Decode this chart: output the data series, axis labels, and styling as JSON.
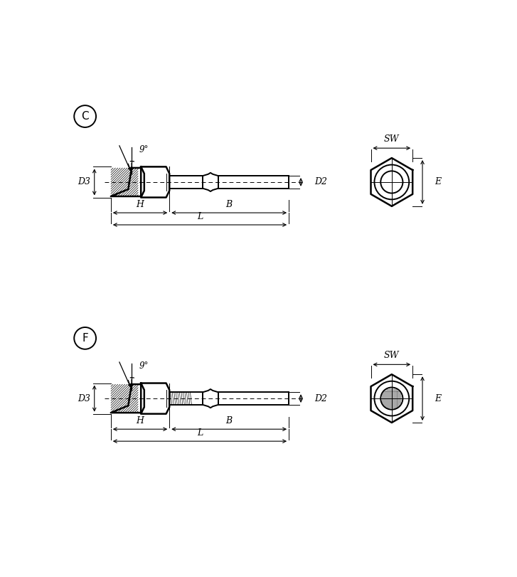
{
  "bg_color": "#ffffff",
  "line_color": "#000000",
  "label_C": "C",
  "label_F": "F",
  "angle_label": "9°",
  "label_D3": "D3",
  "label_D2": "D2",
  "label_H": "H",
  "label_B": "B",
  "label_L": "L",
  "label_SW": "SW",
  "label_E": "E",
  "lw_main": 1.4,
  "lw_thin": 0.7,
  "lw_thick": 1.8,
  "lw_hatch": 0.5,
  "fontsize_label": 9,
  "fontsize_circle": 11
}
